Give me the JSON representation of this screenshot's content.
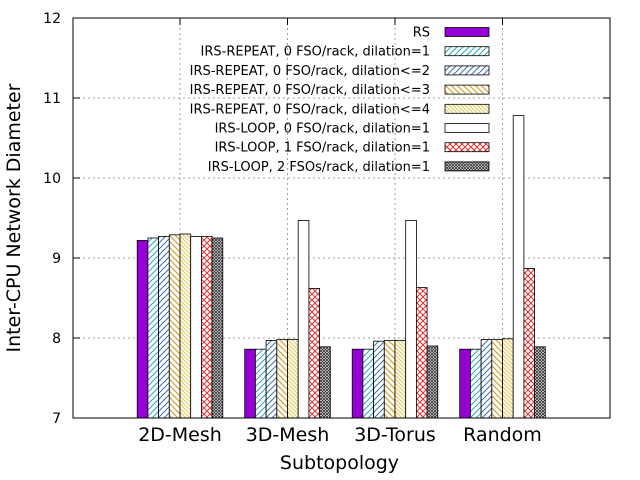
{
  "chart_data": {
    "type": "bar",
    "xlabel": "Subtopology",
    "ylabel": "Inter-CPU Network Diameter",
    "ylim": [
      7,
      12
    ],
    "yticks": [
      7,
      8,
      9,
      10,
      11,
      12
    ],
    "grid": true,
    "legend_position": "top-right",
    "categories": [
      "2D-Mesh",
      "3D-Mesh",
      "3D-Torus",
      "Random"
    ],
    "series": [
      {
        "name": "RS",
        "pattern": "solid-purple",
        "values": [
          9.22,
          7.86,
          7.86,
          7.86
        ]
      },
      {
        "name": "IRS-REPEAT, 0 FSO/rack, dilation=1",
        "pattern": "diag-cyan",
        "values": [
          9.25,
          7.86,
          7.86,
          7.86
        ]
      },
      {
        "name": "IRS-REPEAT, 0 FSO/rack, dilation<=2",
        "pattern": "diag-blue",
        "values": [
          9.27,
          7.97,
          7.96,
          7.98
        ]
      },
      {
        "name": "IRS-REPEAT, 0 FSO/rack, dilation<=3",
        "pattern": "diag-orange",
        "values": [
          9.29,
          7.98,
          7.97,
          7.98
        ]
      },
      {
        "name": "IRS-REPEAT, 0 FSO/rack, dilation<=4",
        "pattern": "diag-yellow",
        "values": [
          9.3,
          7.98,
          7.97,
          7.99
        ]
      },
      {
        "name": "IRS-LOOP, 0 FSO/rack, dilation=1",
        "pattern": "empty",
        "values": [
          9.27,
          9.47,
          9.47,
          10.78
        ]
      },
      {
        "name": "IRS-LOOP, 1 FSO/rack, dilation=1",
        "pattern": "cross-red",
        "values": [
          9.27,
          8.62,
          8.63,
          8.87
        ]
      },
      {
        "name": "IRS-LOOP, 2 FSOs/rack, dilation=1",
        "pattern": "cross-dense",
        "values": [
          9.25,
          7.89,
          7.9,
          7.89
        ]
      }
    ]
  }
}
